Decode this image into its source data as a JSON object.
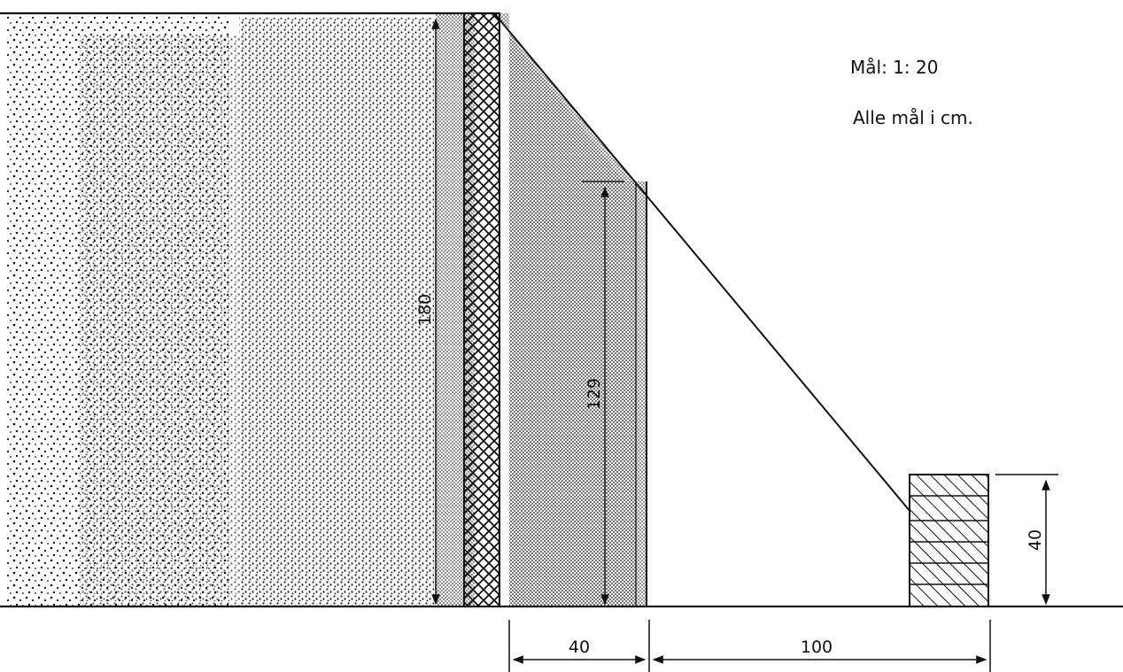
{
  "notes": {
    "scale": "Mål: 1: 20",
    "units": "Alle mål i cm."
  },
  "dimensions": {
    "total_height": "180",
    "inner_height": "129",
    "base_width": "40",
    "slope_run": "100",
    "block_height": "40"
  },
  "colors": {
    "ink": "#111111",
    "paper": "#ffffff"
  }
}
